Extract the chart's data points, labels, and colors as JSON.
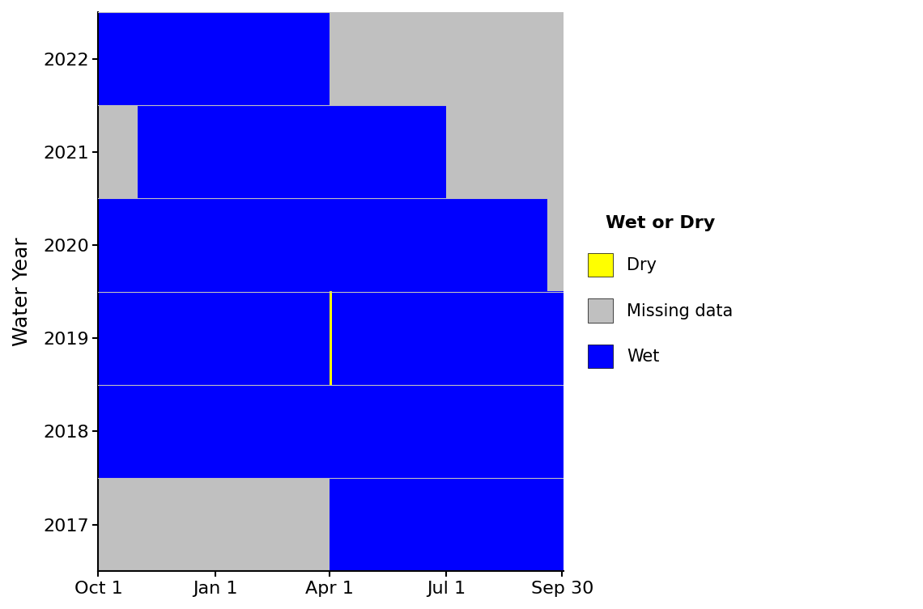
{
  "title": "",
  "xlabel": "",
  "ylabel": "Water Year",
  "water_years": [
    2017,
    2018,
    2019,
    2020,
    2021,
    2022
  ],
  "xtick_labels": [
    "Oct 1",
    "Jan 1",
    "Apr 1",
    "Jul 1",
    "Sep 30"
  ],
  "xtick_days": [
    0,
    92,
    182,
    274,
    365
  ],
  "colors": {
    "wet": [
      0,
      0,
      255
    ],
    "dry": [
      255,
      255,
      0
    ],
    "missing": [
      192,
      192,
      192
    ],
    "background": "#FFFFFF"
  },
  "legend_colors": {
    "wet": "#0000FF",
    "dry": "#FFFF00",
    "missing": "#C0C0C0"
  },
  "legend_title": "Wet or Dry",
  "segments": [
    {
      "wy": 2017,
      "status": "missing",
      "day_start": 0,
      "day_end": 182
    },
    {
      "wy": 2017,
      "status": "wet",
      "day_start": 182,
      "day_end": 366
    },
    {
      "wy": 2018,
      "status": "wet",
      "day_start": 0,
      "day_end": 366
    },
    {
      "wy": 2019,
      "status": "wet",
      "day_start": 0,
      "day_end": 182
    },
    {
      "wy": 2019,
      "status": "dry",
      "day_start": 182,
      "day_end": 184
    },
    {
      "wy": 2019,
      "status": "wet",
      "day_start": 184,
      "day_end": 366
    },
    {
      "wy": 2020,
      "status": "wet",
      "day_start": 0,
      "day_end": 353
    },
    {
      "wy": 2020,
      "status": "missing",
      "day_start": 353,
      "day_end": 366
    },
    {
      "wy": 2021,
      "status": "missing",
      "day_start": 0,
      "day_end": 31
    },
    {
      "wy": 2021,
      "status": "wet",
      "day_start": 31,
      "day_end": 274
    },
    {
      "wy": 2021,
      "status": "missing",
      "day_start": 274,
      "day_end": 366
    },
    {
      "wy": 2022,
      "status": "wet",
      "day_start": 0,
      "day_end": 182
    },
    {
      "wy": 2022,
      "status": "missing",
      "day_start": 182,
      "day_end": 366
    }
  ],
  "total_days": 366,
  "ylim_min": 2016.5,
  "ylim_max": 2022.5,
  "xlim_min": 0,
  "xlim_max": 366,
  "grid_color": "#C0C0C0",
  "grid_linewidth": 0.8,
  "axis_linewidth": 1.5,
  "tick_fontsize": 16,
  "ylabel_fontsize": 18,
  "legend_title_fontsize": 16,
  "legend_fontsize": 15
}
